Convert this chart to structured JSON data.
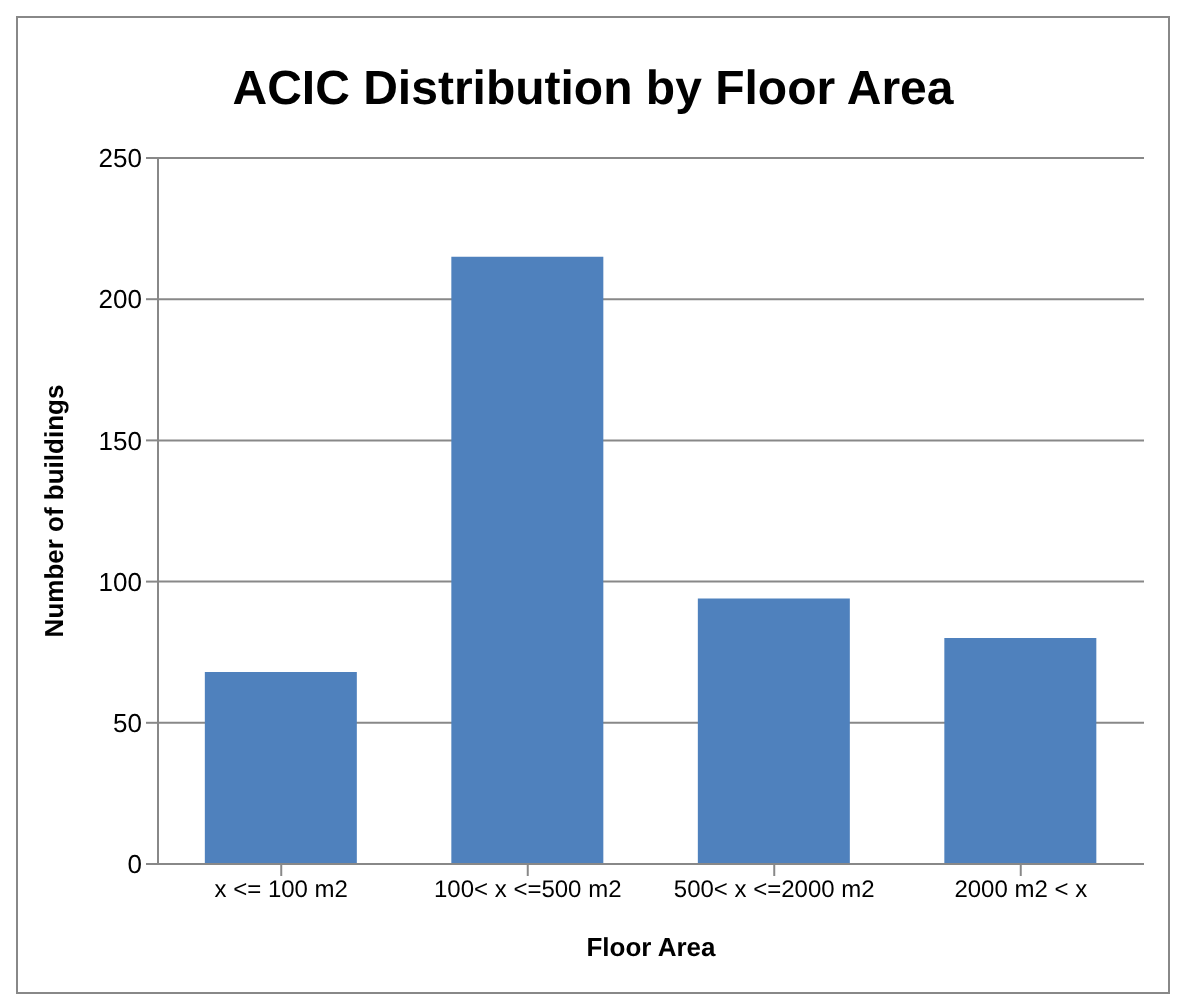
{
  "chart_data": {
    "type": "bar",
    "title": "ACIC Distribution by Floor Area",
    "xlabel": "Floor Area",
    "ylabel": "Number of buildings",
    "categories": [
      "x <= 100 m2",
      "100< x <=500 m2",
      "500< x <=2000 m2",
      "2000 m2 < x"
    ],
    "values": [
      68,
      215,
      94,
      80
    ],
    "color": "#4f81bd",
    "ylim": [
      0,
      250
    ],
    "yticks": [
      0,
      50,
      100,
      150,
      200,
      250
    ],
    "grid": "y"
  }
}
